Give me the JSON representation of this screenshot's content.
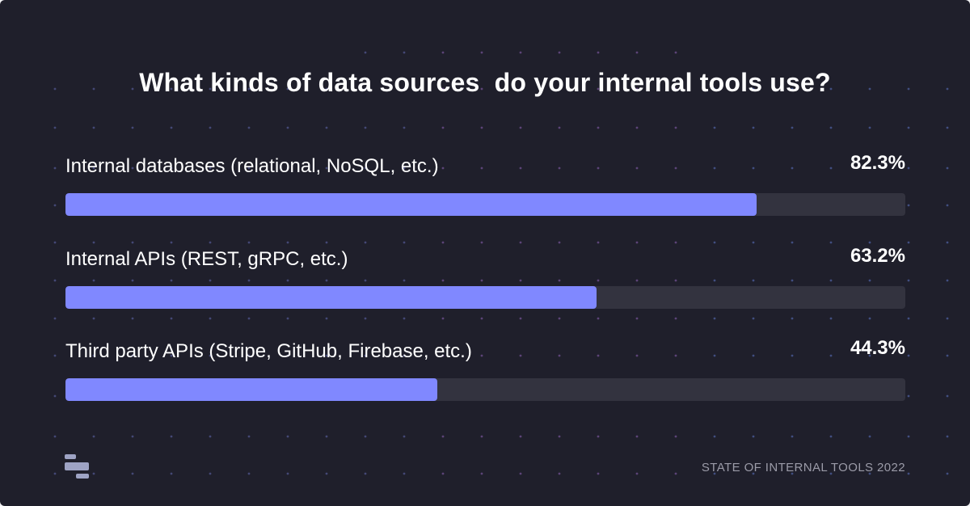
{
  "title": "What kinds of data sources  do your internal tools use?",
  "footer": "STATE OF INTERNAL TOOLS 2022",
  "colors": {
    "background": "#1f1f2b",
    "bar_fill": "#8088ff",
    "bar_track": "#33333f",
    "footer_text": "#9b9ba8",
    "logo": "#9ea3c4"
  },
  "logo_icon": "stacked-bars-logo-icon",
  "chart_data": {
    "type": "bar",
    "orientation": "horizontal",
    "title": "What kinds of data sources  do your internal tools use?",
    "ylim": [
      0,
      100
    ],
    "categories": [
      "Internal databases (relational, NoSQL, etc.)",
      "Internal APIs (REST, gRPC, etc.)",
      "Third party APIs (Stripe, GitHub, Firebase, etc.)"
    ],
    "values": [
      82.3,
      63.2,
      44.3
    ],
    "value_labels": [
      "82.3%",
      "63.2%",
      "44.3%"
    ],
    "unit": "%",
    "grid": false
  }
}
